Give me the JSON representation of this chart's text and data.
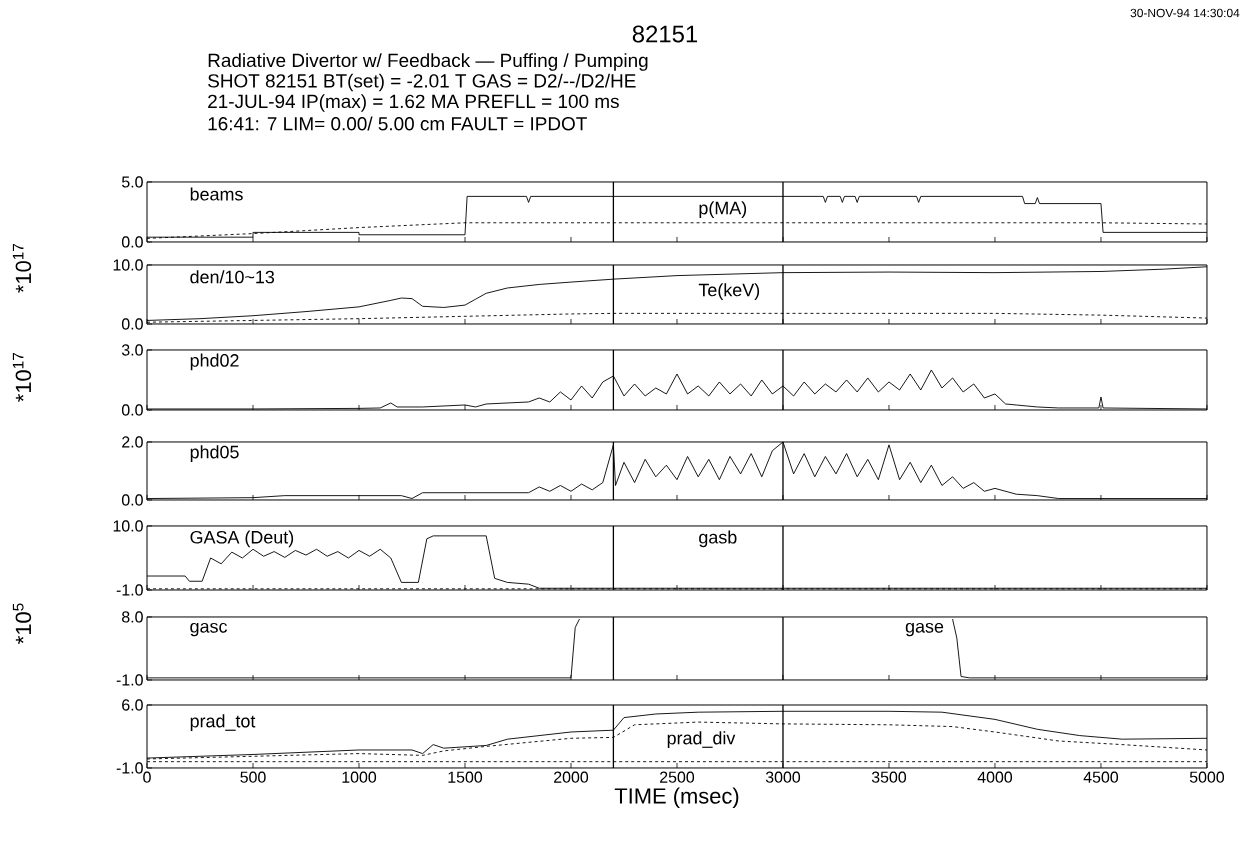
{
  "chart_data": [
    {
      "type": "line",
      "title": "82151",
      "subtitle": "Radiative Divertor w/ Feedback — Puffing / Pumping",
      "annotations": [
        "30-NOV-94 14:30:04",
        "SHOT 82151   BT(set) = -2.01 T   GAS = D2/--/D2/HE",
        "21-JUL-94   IP(max) = 1.62 MA   PREFLL = 100 ms",
        "16:41: 7   LIM= 0.00/ 5.00 cm   FAULT = IPDOT"
      ],
      "xlim": [
        0,
        5000
      ],
      "xticks": [
        0,
        500,
        1000,
        1500,
        2000,
        2500,
        3000,
        3500,
        4000,
        4500,
        5000
      ],
      "ylim": [
        0,
        5
      ],
      "yticks": [
        {
          "value": 0,
          "label": "0.0"
        },
        {
          "value": 5,
          "label": "5.0"
        }
      ],
      "tick_labels": "y",
      "ref_lines": [
        {
          "axis": "x",
          "value": 2200,
          "color": "#000000"
        },
        {
          "axis": "x",
          "value": 3000,
          "color": "#000000"
        }
      ],
      "series": [
        {
          "name": "beams",
          "color": "#000000",
          "line_style": "solid",
          "x": [
            0,
            500,
            500,
            1000,
            1000,
            1500,
            1510,
            1790,
            1800,
            1810,
            3190,
            3200,
            3210,
            3270,
            3280,
            3290,
            3340,
            3350,
            3360,
            3630,
            3640,
            3650,
            4130,
            4140,
            4190,
            4200,
            4210,
            4500,
            4510,
            5000
          ],
          "values": [
            0.4,
            0.4,
            0.8,
            0.8,
            0.6,
            0.6,
            3.8,
            3.8,
            3.3,
            3.8,
            3.8,
            3.3,
            3.8,
            3.8,
            3.3,
            3.8,
            3.8,
            3.3,
            3.8,
            3.8,
            3.3,
            3.8,
            3.8,
            3.2,
            3.2,
            3.7,
            3.2,
            3.2,
            0.8,
            0.8
          ]
        },
        {
          "name": "p(MA)",
          "color": "#000000",
          "line_style": "dashed",
          "x": [
            0,
            500,
            1000,
            1500,
            4500,
            5000
          ],
          "values": [
            0.3,
            0.7,
            1.2,
            1.6,
            1.6,
            1.5
          ]
        }
      ]
    },
    {
      "type": "line",
      "ylabel": "*10$^{17}$",
      "xlim": [
        0,
        5000
      ],
      "xticks": [
        0,
        500,
        1000,
        1500,
        2000,
        2500,
        3000,
        3500,
        4000,
        4500,
        5000
      ],
      "ylim": [
        0,
        10
      ],
      "yticks": [
        {
          "value": 0,
          "label": "0.0"
        },
        {
          "value": 10,
          "label": "10.0"
        }
      ],
      "tick_labels": "y",
      "ref_lines": [
        {
          "axis": "x",
          "value": 2200,
          "color": "#000000"
        },
        {
          "axis": "x",
          "value": 3000,
          "color": "#000000"
        }
      ],
      "series": [
        {
          "name": "den/10~13",
          "color": "#000000",
          "line_style": "solid",
          "x": [
            0,
            250,
            500,
            750,
            1000,
            1150,
            1200,
            1250,
            1300,
            1400,
            1500,
            1550,
            1600,
            1700,
            1850,
            2000,
            2200,
            2500,
            3000,
            3500,
            4000,
            4500,
            4800,
            5000
          ],
          "values": [
            0.6,
            0.9,
            1.4,
            2.1,
            2.9,
            4.0,
            4.4,
            4.3,
            3.0,
            2.8,
            3.2,
            4.2,
            5.2,
            6.1,
            6.7,
            7.1,
            7.6,
            8.2,
            8.7,
            8.8,
            8.7,
            8.9,
            9.3,
            9.7
          ]
        },
        {
          "name": "Te(keV)",
          "color": "#000000",
          "line_style": "dashed",
          "x": [
            0,
            1000,
            1500,
            2000,
            2200,
            3000,
            4000,
            4500,
            5000
          ],
          "values": [
            0.3,
            0.9,
            1.3,
            1.7,
            1.8,
            1.8,
            1.8,
            1.5,
            1.0
          ]
        }
      ]
    },
    {
      "type": "line",
      "ylabel": "*10$^{17}$",
      "xlim": [
        0,
        5000
      ],
      "xticks": [
        0,
        500,
        1000,
        1500,
        2000,
        2500,
        3000,
        3500,
        4000,
        4500,
        5000
      ],
      "ylim": [
        0,
        3
      ],
      "yticks": [
        {
          "value": 0,
          "label": "0.0"
        },
        {
          "value": 3,
          "label": "3.0"
        }
      ],
      "tick_labels": "y",
      "ref_lines": [
        {
          "axis": "x",
          "value": 2200,
          "color": "#000000"
        },
        {
          "axis": "x",
          "value": 3000,
          "color": "#000000"
        }
      ],
      "series": [
        {
          "name": "phd02",
          "color": "#000000",
          "line_style": "solid",
          "x": [
            0,
            500,
            1000,
            1100,
            1150,
            1180,
            1300,
            1400,
            1500,
            1550,
            1600,
            1700,
            1800,
            1850,
            1900,
            1950,
            2000,
            2050,
            2100,
            2150,
            2200,
            2250,
            2300,
            2350,
            2400,
            2450,
            2500,
            2550,
            2600,
            2650,
            2700,
            2750,
            2800,
            2850,
            2900,
            2950,
            3000,
            3050,
            3100,
            3150,
            3200,
            3250,
            3300,
            3350,
            3400,
            3450,
            3500,
            3550,
            3600,
            3650,
            3700,
            3750,
            3800,
            3850,
            3900,
            3950,
            4000,
            4050,
            4100,
            4200,
            4300,
            4490,
            4500,
            4510,
            5000
          ],
          "values": [
            0.05,
            0.05,
            0.08,
            0.1,
            0.35,
            0.15,
            0.15,
            0.2,
            0.25,
            0.15,
            0.3,
            0.35,
            0.4,
            0.6,
            0.4,
            0.9,
            0.5,
            1.2,
            0.6,
            1.4,
            1.7,
            0.7,
            1.3,
            0.7,
            1.1,
            0.8,
            1.8,
            0.8,
            1.2,
            0.7,
            1.4,
            0.8,
            1.3,
            0.7,
            1.5,
            0.8,
            1.2,
            0.7,
            1.4,
            0.8,
            1.3,
            0.9,
            1.5,
            0.9,
            1.6,
            0.9,
            1.4,
            1.0,
            1.8,
            1.0,
            2.0,
            1.1,
            1.6,
            0.9,
            1.3,
            0.6,
            0.8,
            0.3,
            0.25,
            0.15,
            0.1,
            0.1,
            0.65,
            0.1,
            0.05
          ]
        }
      ]
    },
    {
      "type": "line",
      "xlim": [
        0,
        5000
      ],
      "xticks": [
        0,
        500,
        1000,
        1500,
        2000,
        2500,
        3000,
        3500,
        4000,
        4500,
        5000
      ],
      "ylim": [
        0,
        2
      ],
      "yticks": [
        {
          "value": 0,
          "label": "0.0"
        },
        {
          "value": 2,
          "label": "2.0"
        }
      ],
      "tick_labels": "y",
      "ref_lines": [
        {
          "axis": "x",
          "value": 2200,
          "color": "#000000"
        },
        {
          "axis": "x",
          "value": 3000,
          "color": "#000000"
        }
      ],
      "series": [
        {
          "name": "phd05",
          "color": "#000000",
          "line_style": "solid",
          "x": [
            0,
            500,
            650,
            1200,
            1250,
            1300,
            1800,
            1850,
            1900,
            1950,
            2000,
            2050,
            2100,
            2150,
            2200,
            2210,
            2250,
            2300,
            2350,
            2400,
            2450,
            2500,
            2550,
            2600,
            2650,
            2700,
            2750,
            2800,
            2850,
            2900,
            2950,
            3000,
            3050,
            3100,
            3150,
            3200,
            3250,
            3300,
            3350,
            3400,
            3450,
            3500,
            3550,
            3600,
            3650,
            3700,
            3750,
            3800,
            3850,
            3900,
            3950,
            4000,
            4100,
            4200,
            4300,
            5000
          ],
          "values": [
            0.05,
            0.08,
            0.15,
            0.15,
            0.05,
            0.25,
            0.25,
            0.45,
            0.3,
            0.5,
            0.3,
            0.55,
            0.35,
            0.6,
            1.9,
            0.5,
            1.3,
            0.6,
            1.4,
            0.8,
            1.2,
            0.7,
            1.5,
            0.8,
            1.4,
            0.7,
            1.5,
            0.9,
            1.6,
            0.8,
            1.7,
            2.0,
            0.9,
            1.6,
            0.8,
            1.5,
            0.9,
            1.6,
            0.8,
            1.4,
            0.7,
            1.9,
            0.7,
            1.3,
            0.6,
            1.2,
            0.5,
            0.8,
            0.4,
            0.6,
            0.3,
            0.4,
            0.2,
            0.15,
            0.05,
            0.05
          ]
        }
      ]
    },
    {
      "type": "line",
      "xlim": [
        0,
        5000
      ],
      "xticks": [
        0,
        500,
        1000,
        1500,
        2000,
        2500,
        3000,
        3500,
        4000,
        4500,
        5000
      ],
      "ylim": [
        -1,
        10
      ],
      "yticks": [
        {
          "value": -1,
          "label": "-1.0"
        },
        {
          "value": 10,
          "label": "10.0"
        }
      ],
      "tick_labels": "y",
      "ref_lines": [
        {
          "axis": "x",
          "value": 2200,
          "color": "#000000"
        },
        {
          "axis": "x",
          "value": 3000,
          "color": "#000000"
        }
      ],
      "series": [
        {
          "name": "GASA (Deut)",
          "color": "#000000",
          "line_style": "solid",
          "x": [
            0,
            180,
            200,
            260,
            300,
            350,
            400,
            450,
            500,
            550,
            600,
            650,
            700,
            750,
            800,
            850,
            900,
            950,
            1000,
            1050,
            1100,
            1150,
            1200,
            1280,
            1320,
            1350,
            1600,
            1640,
            1700,
            1800,
            1850,
            5000
          ],
          "values": [
            1.4,
            1.4,
            0.5,
            0.5,
            4.5,
            3.5,
            5.5,
            4.5,
            6.0,
            4.8,
            5.6,
            4.6,
            5.8,
            5.0,
            6.0,
            4.8,
            5.6,
            4.5,
            5.8,
            4.8,
            6.0,
            4.5,
            0.3,
            0.3,
            7.8,
            8.3,
            8.3,
            1.0,
            0.3,
            0.0,
            -0.7,
            -0.7
          ]
        },
        {
          "name": "gasb",
          "color": "#000000",
          "line_style": "dashed",
          "x": [
            0,
            5000
          ],
          "values": [
            -0.8,
            -0.8
          ]
        }
      ]
    },
    {
      "type": "line",
      "ylabel": "*10$^{5}$",
      "xlim": [
        0,
        5000
      ],
      "xticks": [
        0,
        500,
        1000,
        1500,
        2000,
        2500,
        3000,
        3500,
        4000,
        4500,
        5000
      ],
      "ylim": [
        -1,
        8
      ],
      "yticks": [
        {
          "value": -1,
          "label": "-1.0"
        },
        {
          "value": 8,
          "label": "8.0"
        }
      ],
      "tick_labels": "y",
      "ref_lines": [
        {
          "axis": "x",
          "value": 2200,
          "color": "#000000"
        },
        {
          "axis": "x",
          "value": 3000,
          "color": "#000000"
        }
      ],
      "series": [
        {
          "name": "gasc",
          "color": "#000000",
          "line_style": "solid",
          "x": [
            0,
            2000,
            2020,
            2040
          ],
          "values": [
            -0.7,
            -0.7,
            6.5,
            7.7
          ]
        },
        {
          "name": "gase",
          "color": "#000000",
          "line_style": "solid",
          "x": [
            3800,
            3820,
            3840,
            3880,
            5000
          ],
          "values": [
            7.7,
            5.0,
            -0.5,
            -0.7,
            -0.7
          ]
        }
      ]
    },
    {
      "type": "line",
      "xlabel": "TIME (msec)",
      "xlim": [
        0,
        5000
      ],
      "xticks": [
        0,
        500,
        1000,
        1500,
        2000,
        2500,
        3000,
        3500,
        4000,
        4500,
        5000
      ],
      "ylim": [
        -1,
        6
      ],
      "yticks": [
        {
          "value": -1,
          "label": "-1.0"
        },
        {
          "value": 6,
          "label": "6.0"
        }
      ],
      "ref_lines": [
        {
          "axis": "x",
          "value": 2200,
          "color": "#000000"
        },
        {
          "axis": "x",
          "value": 3000,
          "color": "#000000"
        }
      ],
      "series": [
        {
          "name": "prad_tot",
          "color": "#000000",
          "line_style": "solid",
          "x": [
            0,
            500,
            1000,
            1250,
            1300,
            1350,
            1400,
            1600,
            1700,
            2000,
            2200,
            2250,
            2400,
            2600,
            3000,
            3500,
            3750,
            4000,
            4200,
            4400,
            4600,
            5000
          ],
          "values": [
            0.1,
            0.5,
            1.0,
            1.0,
            0.6,
            1.6,
            1.2,
            1.5,
            2.2,
            3.0,
            3.2,
            4.6,
            5.0,
            5.2,
            5.3,
            5.3,
            5.2,
            4.4,
            3.3,
            2.6,
            2.2,
            2.3
          ]
        },
        {
          "name": "prad_div",
          "color": "#000000",
          "line_style": "dashed",
          "x": [
            0,
            500,
            1000,
            1300,
            1400,
            1600,
            2000,
            2200,
            2300,
            2600,
            3000,
            3500,
            3800,
            4000,
            4300,
            4600,
            5000
          ],
          "values": [
            0.0,
            0.3,
            0.6,
            0.4,
            0.9,
            1.4,
            2.3,
            2.4,
            3.8,
            4.1,
            3.9,
            3.8,
            3.6,
            3.0,
            2.0,
            1.6,
            1.0
          ]
        },
        {
          "color": "#000000",
          "line_style": "dashed",
          "x": [
            0,
            5000
          ],
          "values": [
            -0.3,
            -0.3
          ]
        }
      ]
    }
  ]
}
